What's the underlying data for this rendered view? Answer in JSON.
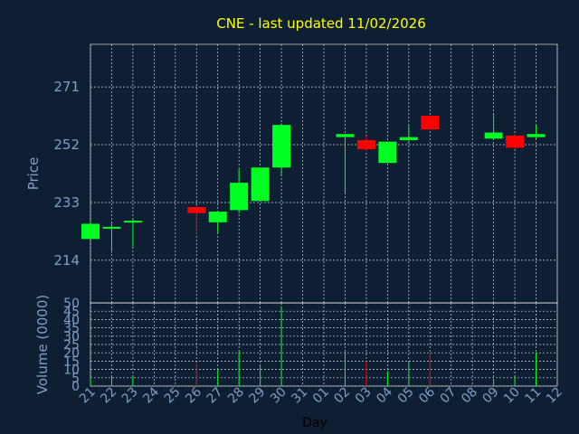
{
  "chart_data": [
    {
      "type": "candlestick",
      "title": "CNE - last updated 11/02/2026",
      "ylabel": "Price",
      "xlabel": "",
      "ylim": [
        200,
        285
      ],
      "yticks": [
        "214",
        "233",
        "252",
        "271"
      ],
      "grid": true,
      "categories": [
        "21",
        "22",
        "23",
        "24",
        "25",
        "26",
        "27",
        "28",
        "29",
        "30",
        "31",
        "01",
        "02",
        "03",
        "04",
        "05",
        "06",
        "07",
        "08",
        "09",
        "10",
        "11",
        "12"
      ],
      "candles": [
        {
          "x": "21",
          "open": 221,
          "high": 227,
          "low": 221,
          "close": 226
        },
        {
          "x": "22",
          "open": 224.5,
          "high": 226.5,
          "low": 216.5,
          "close": 225
        },
        {
          "x": "23",
          "open": 226.5,
          "high": 227.5,
          "low": 218.5,
          "close": 227
        },
        {
          "x": "26",
          "open": 231.5,
          "high": 232,
          "low": 222.5,
          "close": 229.5
        },
        {
          "x": "27",
          "open": 226.5,
          "high": 230,
          "low": 223,
          "close": 230
        },
        {
          "x": "28",
          "open": 230.5,
          "high": 244,
          "low": 229.5,
          "close": 239.5
        },
        {
          "x": "29",
          "open": 233.5,
          "high": 244.5,
          "low": 233.5,
          "close": 244.5
        },
        {
          "x": "30",
          "open": 244.5,
          "high": 259,
          "low": 242,
          "close": 258.5
        },
        {
          "x": "02",
          "open": 254.5,
          "high": 255.5,
          "low": 236,
          "close": 255.5
        },
        {
          "x": "03",
          "open": 253.5,
          "high": 255,
          "low": 250,
          "close": 250.5
        },
        {
          "x": "04",
          "open": 246,
          "high": 253,
          "low": 246,
          "close": 253
        },
        {
          "x": "05",
          "open": 253.5,
          "high": 258.5,
          "low": 253,
          "close": 254.5
        },
        {
          "x": "06",
          "open": 261.5,
          "high": 261.5,
          "low": 257,
          "close": 257
        },
        {
          "x": "09",
          "open": 254,
          "high": 262,
          "low": 254,
          "close": 256
        },
        {
          "x": "10",
          "open": 255,
          "high": 255.5,
          "low": 250.5,
          "close": 251
        },
        {
          "x": "11",
          "open": 254.5,
          "high": 258.5,
          "low": 254,
          "close": 255.5
        }
      ]
    },
    {
      "type": "bar",
      "ylabel": "Volume (0000)",
      "xlabel": "Day",
      "ylim": [
        0,
        50
      ],
      "yticks": [
        "0",
        "5",
        "10",
        "15",
        "20",
        "25",
        "30",
        "35",
        "40",
        "45",
        "50"
      ],
      "grid": true,
      "categories": [
        "21",
        "22",
        "23",
        "24",
        "25",
        "26",
        "27",
        "28",
        "29",
        "30",
        "31",
        "01",
        "02",
        "03",
        "04",
        "05",
        "06",
        "07",
        "08",
        "09",
        "10",
        "11",
        "12"
      ],
      "volumes": [
        {
          "x": "21",
          "value": 4,
          "color": "#00ff22"
        },
        {
          "x": "22",
          "value": 6,
          "color": "#00ff22"
        },
        {
          "x": "23",
          "value": 6,
          "color": "#00ff22"
        },
        {
          "x": "26",
          "value": 13,
          "color": "#ff0000"
        },
        {
          "x": "27",
          "value": 10,
          "color": "#00ff22"
        },
        {
          "x": "28",
          "value": 21,
          "color": "#00ff22"
        },
        {
          "x": "29",
          "value": 13,
          "color": "#00ff22"
        },
        {
          "x": "30",
          "value": 48,
          "color": "#00ff22"
        },
        {
          "x": "02",
          "value": 21,
          "color": "#00ff22"
        },
        {
          "x": "03",
          "value": 15,
          "color": "#ff0000"
        },
        {
          "x": "04",
          "value": 9,
          "color": "#00ff22"
        },
        {
          "x": "05",
          "value": 14,
          "color": "#00ff22"
        },
        {
          "x": "06",
          "value": 20,
          "color": "#ff0000"
        },
        {
          "x": "09",
          "value": 4,
          "color": "#00ff22"
        },
        {
          "x": "10",
          "value": 6,
          "color": "#00ff22"
        },
        {
          "x": "11",
          "value": 20,
          "color": "#00ff22"
        }
      ]
    }
  ],
  "colors": {
    "background": "#0f1f33",
    "title": "#ffff00",
    "axis_text": "#7f9fc4",
    "grid": "#d0d8e4",
    "up": "#00ff22",
    "down": "#ff0000"
  }
}
